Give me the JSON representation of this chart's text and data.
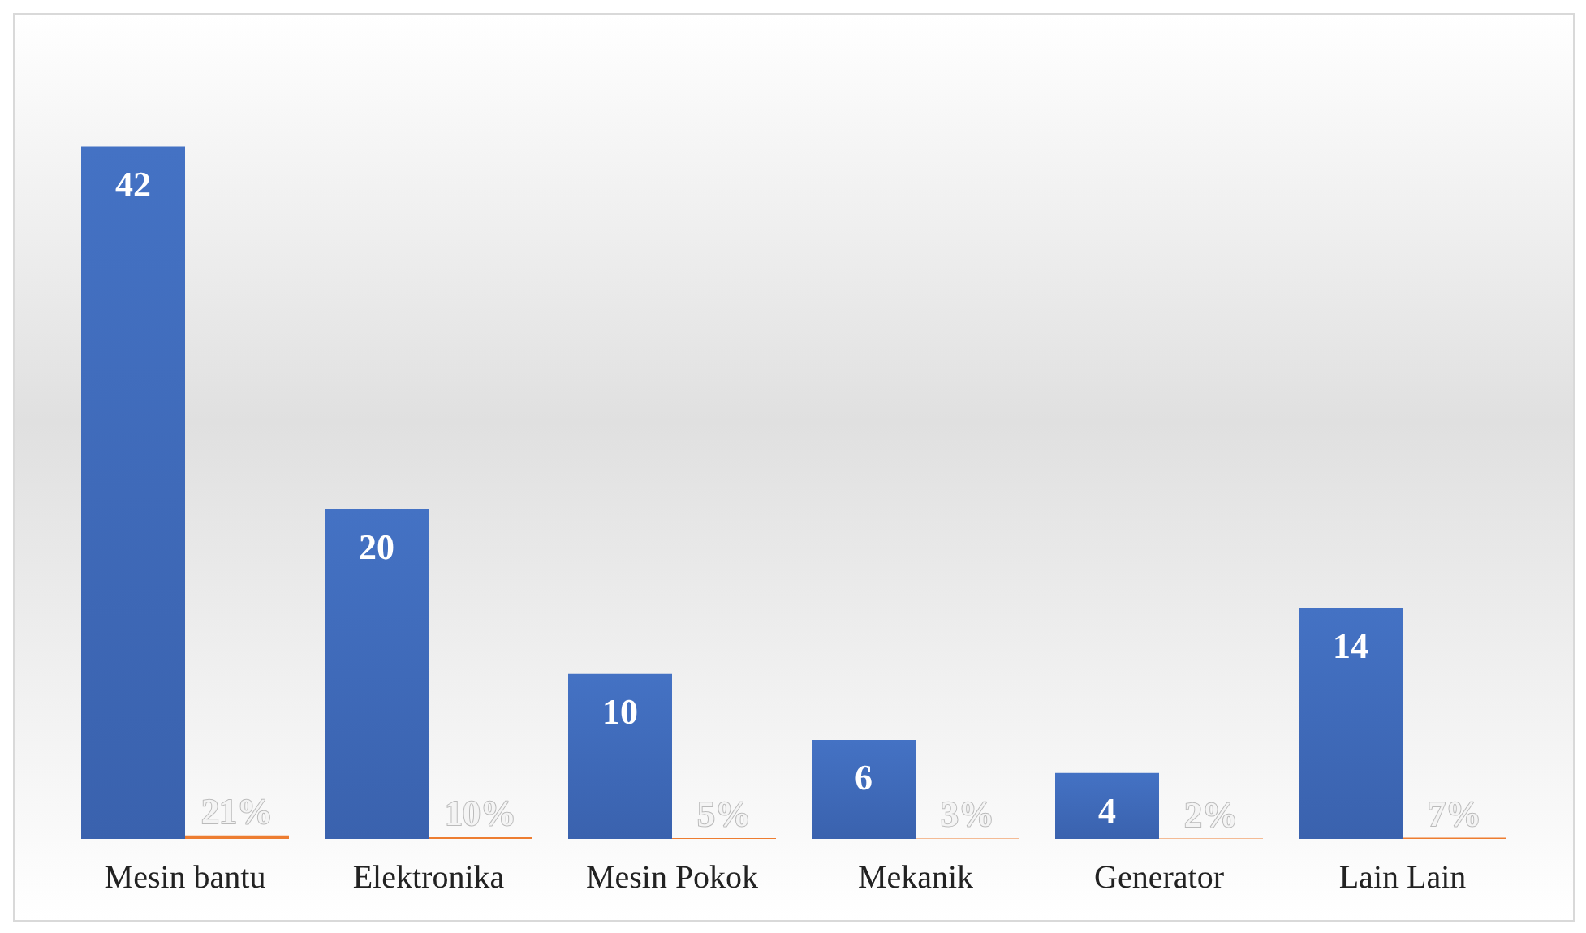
{
  "chart_data": {
    "type": "bar",
    "categories": [
      "Mesin bantu",
      "Elektronika",
      "Mesin Pokok",
      "Mekanik",
      "Generator",
      "Lain Lain"
    ],
    "data_labels": true,
    "grid": false,
    "series": [
      {
        "color": "#4472c4",
        "values": [
          42,
          20,
          10,
          6,
          4,
          14
        ]
      },
      {
        "color": "#ed7d31",
        "values": [
          0.21,
          0.1,
          0.05,
          0.03,
          0.02,
          0.07
        ],
        "value_labels": [
          "21%",
          "10%",
          "5%",
          "3%",
          "2%",
          "7%"
        ]
      }
    ]
  }
}
